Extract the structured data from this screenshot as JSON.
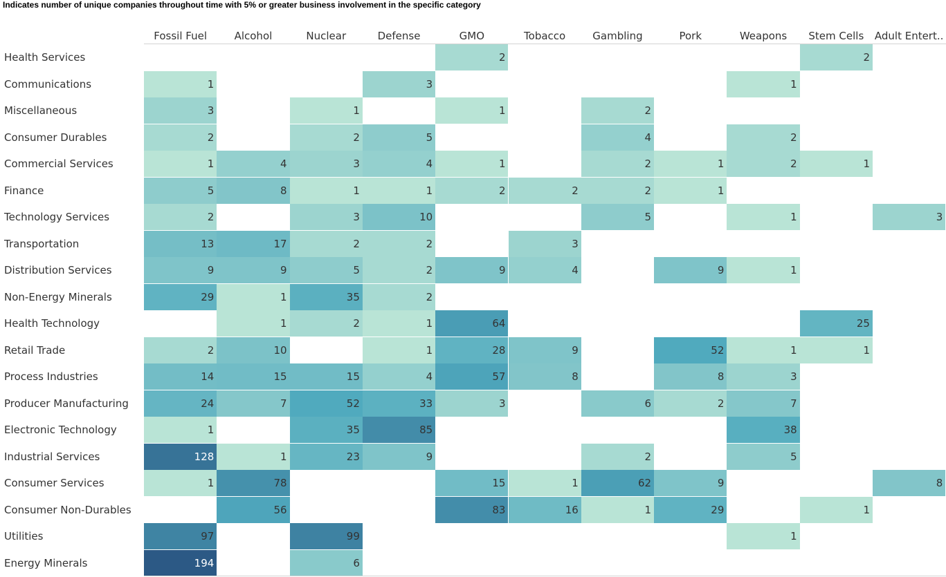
{
  "chart_data": {
    "type": "heatmap",
    "title": "Indicates number of unique companies throughout time with 5% or greater business involvement in the specific category",
    "columns": [
      "Fossil Fuel",
      "Alcohol",
      "Nuclear",
      "Defense",
      "GMO",
      "Tobacco",
      "Gambling",
      "Pork",
      "Weapons",
      "Stem Cells",
      "Adult Entert.."
    ],
    "rows": [
      "Health Services",
      "Communications",
      "Miscellaneous",
      "Consumer Durables",
      "Commercial Services",
      "Finance",
      "Technology Services",
      "Transportation",
      "Distribution Services",
      "Non-Energy Minerals",
      "Health Technology",
      "Retail Trade",
      "Process Industries",
      "Producer Manufacturing",
      "Electronic Technology",
      "Industrial Services",
      "Consumer Services",
      "Consumer Non-Durables",
      "Utilities",
      "Energy Minerals"
    ],
    "values": [
      [
        null,
        null,
        null,
        null,
        2,
        null,
        null,
        null,
        null,
        2,
        null
      ],
      [
        1,
        null,
        null,
        3,
        null,
        null,
        null,
        null,
        1,
        null,
        null
      ],
      [
        3,
        null,
        1,
        null,
        1,
        null,
        2,
        null,
        null,
        null,
        null
      ],
      [
        2,
        null,
        2,
        5,
        null,
        null,
        4,
        null,
        2,
        null,
        null
      ],
      [
        1,
        4,
        3,
        4,
        1,
        null,
        2,
        1,
        2,
        1,
        null
      ],
      [
        5,
        8,
        1,
        1,
        2,
        2,
        2,
        1,
        null,
        null,
        null
      ],
      [
        2,
        null,
        3,
        10,
        null,
        null,
        5,
        null,
        1,
        null,
        3
      ],
      [
        13,
        17,
        2,
        2,
        null,
        3,
        null,
        null,
        null,
        null,
        null
      ],
      [
        9,
        9,
        5,
        2,
        9,
        4,
        null,
        9,
        1,
        null,
        null
      ],
      [
        29,
        1,
        35,
        2,
        null,
        null,
        null,
        null,
        null,
        null,
        null
      ],
      [
        null,
        1,
        2,
        1,
        64,
        null,
        null,
        null,
        null,
        25,
        null
      ],
      [
        2,
        10,
        null,
        1,
        28,
        9,
        null,
        52,
        1,
        1,
        null
      ],
      [
        14,
        15,
        15,
        4,
        57,
        8,
        null,
        8,
        3,
        null,
        null
      ],
      [
        24,
        7,
        52,
        33,
        3,
        null,
        6,
        2,
        7,
        null,
        null
      ],
      [
        1,
        null,
        35,
        85,
        null,
        null,
        null,
        null,
        38,
        null,
        null
      ],
      [
        128,
        1,
        23,
        9,
        null,
        null,
        2,
        null,
        5,
        null,
        null
      ],
      [
        1,
        78,
        null,
        null,
        15,
        1,
        62,
        9,
        null,
        null,
        8
      ],
      [
        null,
        56,
        null,
        null,
        83,
        16,
        1,
        29,
        null,
        1,
        null
      ],
      [
        97,
        null,
        99,
        null,
        null,
        null,
        null,
        null,
        1,
        null,
        null
      ],
      [
        194,
        null,
        6,
        null,
        null,
        null,
        null,
        null,
        null,
        null,
        null
      ]
    ],
    "color_low": "#b9e4d6",
    "color_high": "#2c5985",
    "value_range": [
      1,
      194
    ]
  }
}
